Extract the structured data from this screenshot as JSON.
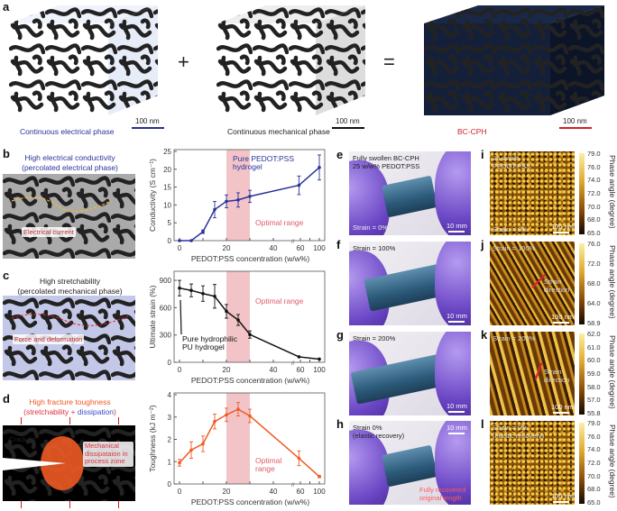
{
  "panel_a": {
    "label": "a",
    "plus": "+",
    "equals": "=",
    "cubes": [
      {
        "caption": "Continuous electrical phase",
        "scale": "100 nm",
        "scale_color": "#2a2f8f"
      },
      {
        "caption": "Continuous mechanical phase",
        "scale": "100 nm",
        "scale_color": "#111111"
      },
      {
        "caption": "BC-CPH",
        "scale": "100 nm",
        "scale_color": "#d0202a"
      }
    ]
  },
  "panel_b": {
    "label": "b",
    "title1": "High electrical conductivity",
    "title2": "(percolated electrical phase)",
    "annotation": "Electrical current"
  },
  "panel_c": {
    "label": "c",
    "title1": "High stretchability",
    "title2": "(percolated mechanical phase)",
    "annotation": "Force and deformation"
  },
  "panel_d": {
    "label": "d",
    "title1": "High fracture toughness",
    "title2a": "(stretchability",
    "title2b": " + ",
    "title2c": "dissipation",
    "title2d": ")",
    "crack": "Crack tip",
    "annotation": "Mechanical dissipataion in process zone"
  },
  "photos": [
    {
      "label": "e",
      "text": "Fully swollen BC-CPH\n25 w/w% PEDOT:PSS",
      "strain": "Strain = 0%",
      "scale": "10 mm"
    },
    {
      "label": "f",
      "text": "Strain = 100%",
      "scale": "10 mm"
    },
    {
      "label": "g",
      "text": "Strain = 200%",
      "scale": "10 mm"
    },
    {
      "label": "h",
      "text": "Strain 0%\n(elastic recovery)",
      "scale": "10 mm",
      "annotation": "Fully recovered\noriginal length"
    }
  ],
  "afm": [
    {
      "label": "i",
      "text": "25 w/w%\nPEDOT:PSS",
      "strain": "Strain = 0%",
      "scale": "100 nm",
      "ticks": [
        "79.0",
        "76.0",
        "74.0",
        "72.0",
        "70.0",
        "68.0",
        "65.0"
      ],
      "axis": "Phase angle (degree)"
    },
    {
      "label": "j",
      "text": "Strain = 100%",
      "dir": "Strain\ndirection",
      "scale": "100 nm",
      "ticks": [
        "76.0",
        "72.0",
        "68.0",
        "64.0",
        "58.9"
      ],
      "axis": "Phase angle (degree)"
    },
    {
      "label": "k",
      "text": "Strain = 200%",
      "dir": "Strain\ndirection",
      "scale": "100 nm",
      "ticks": [
        "62.0",
        "61.0",
        "60.0",
        "59.0",
        "58.0",
        "57.0",
        "55.8"
      ],
      "axis": "Phase angle (degree)"
    },
    {
      "label": "l",
      "text": "Strain = 0%\n(elastic recovery)",
      "scale": "100 nm",
      "ticks": [
        "79.0",
        "76.0",
        "74.0",
        "72.0",
        "70.0",
        "68.0",
        "65.0"
      ],
      "axis": "Phase angle (degree)"
    }
  ],
  "chart_data": [
    {
      "type": "line",
      "color": "#2a3399",
      "xlabel": "PEDOT:PSS concentration (w/w%)",
      "ylabel": "Conductivity (S cm⁻¹)",
      "x": [
        0,
        5,
        10,
        15,
        20,
        25,
        30,
        57,
        100
      ],
      "y": [
        0,
        0,
        2.5,
        8.7,
        11,
        11.4,
        12.4,
        15.5,
        20.5
      ],
      "err": [
        0,
        0,
        0.5,
        2.3,
        1.8,
        2,
        1.7,
        2.6,
        3.5
      ],
      "ylim": [
        0,
        25
      ],
      "yticks": [
        "0",
        "5",
        "10",
        "15",
        "20",
        "25"
      ],
      "xticks": [
        "0",
        "20",
        "40",
        "60",
        "100"
      ],
      "band": [
        20,
        30
      ],
      "band_label": "Optimal range",
      "annotation": "Pure PEDOT:PSS\nhydrogel"
    },
    {
      "type": "line",
      "color": "#111111",
      "xlabel": "PEDOT:PSS concentration (w/w%)",
      "ylabel": "Ultimate strain (%)",
      "x": [
        0,
        5,
        10,
        15,
        20,
        25,
        30,
        57,
        100
      ],
      "y": [
        815,
        790,
        755,
        725,
        560,
        465,
        305,
        60,
        35
      ],
      "err": [
        85,
        70,
        85,
        130,
        75,
        60,
        40,
        0,
        0
      ],
      "ylim": [
        0,
        1000
      ],
      "yticks": [
        "0",
        "300",
        "600",
        "900"
      ],
      "xticks": [
        "0",
        "20",
        "40",
        "60",
        "100"
      ],
      "band": [
        20,
        30
      ],
      "band_label": "Optimal range",
      "annotation": "Pure hydrophilic\nPU hydrogel"
    },
    {
      "type": "line",
      "color": "#f05a24",
      "xlabel": "PEDOT:PSS concentration (w/w%)",
      "ylabel": "Toughness (kJ m⁻²)",
      "x": [
        0,
        5,
        10,
        15,
        20,
        25,
        30,
        57,
        100
      ],
      "y": [
        0.95,
        1.52,
        1.8,
        2.8,
        3.1,
        3.35,
        3.05,
        1.15,
        0.33
      ],
      "err": [
        0.15,
        0.37,
        0.35,
        0.33,
        0.3,
        0.3,
        0.3,
        0.33,
        0.05
      ],
      "ylim": [
        0,
        4
      ],
      "yticks": [
        "0",
        "1",
        "2",
        "3",
        "4"
      ],
      "xticks": [
        "0",
        "20",
        "40",
        "60",
        "100"
      ],
      "band": [
        20,
        30
      ],
      "band_label": "Optimal\nrange"
    }
  ]
}
